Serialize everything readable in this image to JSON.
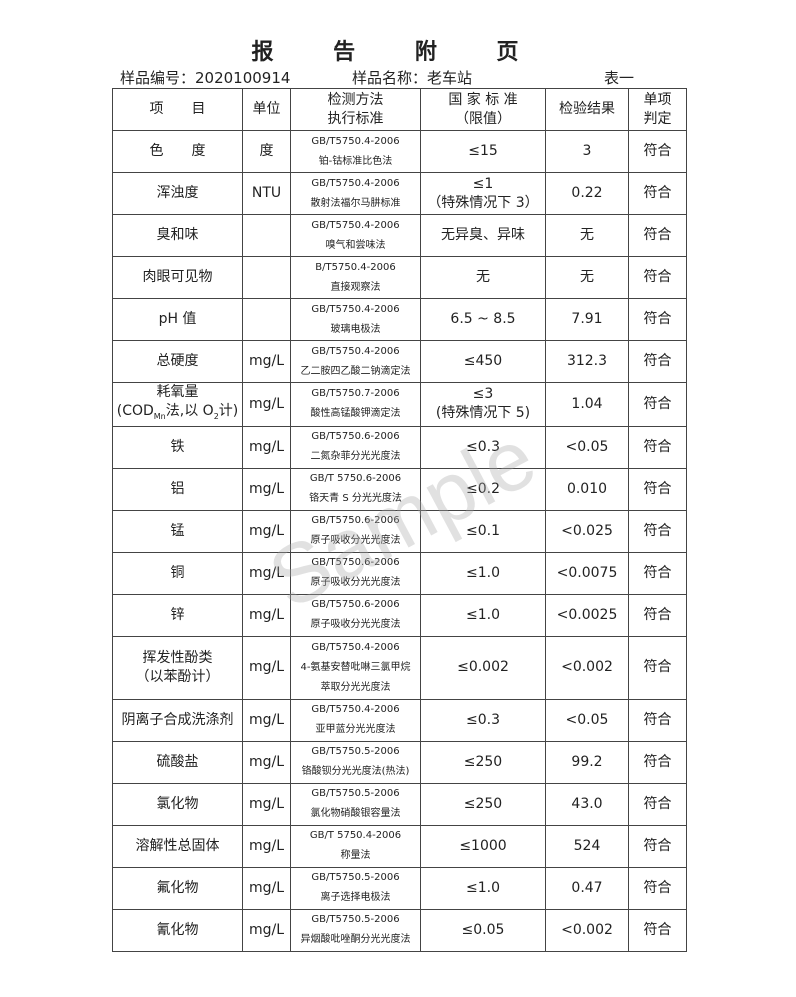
{
  "title": "报 告 附 页",
  "sample_no": "样品编号：2020100914",
  "sample_name": "样品名称：老车站",
  "table_label": "表一",
  "watermark": "Sample",
  "headers": {
    "item": "项　　目",
    "unit": "单位",
    "method1": "检测方法",
    "method2": "执行标准",
    "std1": "国 家 标 准",
    "std2": "（限值）",
    "result": "检验结果",
    "judge1": "单项",
    "judge2": "判定"
  },
  "rows": [
    {
      "item": "色　　度",
      "unit": "度",
      "code": "GB/T5750.4-2006",
      "method": "铂-钴标准比色法",
      "limit": "≤15",
      "result": "3",
      "judge": "符合"
    },
    {
      "item": "浑浊度",
      "unit": "NTU",
      "code": "GB/T5750.4-2006",
      "method": "散射法福尔马肼标准",
      "limit": "≤1",
      "limit2": "（特殊情况下 3）",
      "result": "0.22",
      "judge": "符合"
    },
    {
      "item": "臭和味",
      "unit": "",
      "code": "GB/T5750.4-2006",
      "method": "嗅气和尝味法",
      "limit": "无异臭、异味",
      "result": "无",
      "judge": "符合"
    },
    {
      "item": "肉眼可见物",
      "unit": "",
      "code": "B/T5750.4-2006",
      "method": "直接观察法",
      "limit": "无",
      "result": "无",
      "judge": "符合"
    },
    {
      "item": "pH 值",
      "unit": "",
      "code": "GB/T5750.4-2006",
      "method": "玻璃电极法",
      "limit": "6.5 ~ 8.5",
      "result": "7.91",
      "judge": "符合"
    },
    {
      "item": "总硬度",
      "unit": "mg/L",
      "code": "GB/T5750.4-2006",
      "method": "乙二胺四乙酸二钠滴定法",
      "limit": "≤450",
      "result": "312.3",
      "judge": "符合"
    },
    {
      "item": "耗氧量",
      "item2": "(COD<sub>Mn</sub>法,以 O<sub>2</sub>计)",
      "unit": "mg/L",
      "code": "GB/T5750.7-2006",
      "method": "酸性高锰酸钾滴定法",
      "limit": "≤3",
      "limit2": "(特殊情况下 5)",
      "result": "1.04",
      "judge": "符合"
    },
    {
      "item": "铁",
      "unit": "mg/L",
      "code": "GB/T5750.6-2006",
      "method": "二氮杂菲分光光度法",
      "limit": "≤0.3",
      "result": "<0.05",
      "judge": "符合"
    },
    {
      "item": "铝",
      "unit": "mg/L",
      "code": "GB/T 5750.6-2006",
      "method": "铬天青 S 分光光度法",
      "limit": "≤0.2",
      "result": "0.010",
      "judge": "符合"
    },
    {
      "item": "锰",
      "unit": "mg/L",
      "code": "GB/T5750.6-2006",
      "method": "原子吸收分光光度法",
      "limit": "≤0.1",
      "result": "<0.025",
      "judge": "符合"
    },
    {
      "item": "铜",
      "unit": "mg/L",
      "code": "GB/T5750.6-2006",
      "method": "原子吸收分光光度法",
      "limit": "≤1.0",
      "result": "<0.0075",
      "judge": "符合"
    },
    {
      "item": "锌",
      "unit": "mg/L",
      "code": "GB/T5750.6-2006",
      "method": "原子吸收分光光度法",
      "limit": "≤1.0",
      "result": "<0.0025",
      "judge": "符合"
    },
    {
      "item": "挥发性酚类",
      "item2": "（以苯酚计）",
      "unit": "mg/L",
      "code": "GB/T5750.4-2006",
      "method": "4-氨基安替吡啉三氯甲烷",
      "method2": "萃取分光光度法",
      "limit": "≤0.002",
      "result": "<0.002",
      "judge": "符合"
    },
    {
      "item": "阴离子合成洗涤剂",
      "unit": "mg/L",
      "code": "GB/T5750.4-2006",
      "method": "亚甲蓝分光光度法",
      "limit": "≤0.3",
      "result": "<0.05",
      "judge": "符合"
    },
    {
      "item": "硫酸盐",
      "unit": "mg/L",
      "code": "GB/T5750.5-2006",
      "method": "铬酸钡分光光度法(热法)",
      "limit": "≤250",
      "result": "99.2",
      "judge": "符合"
    },
    {
      "item": "氯化物",
      "unit": "mg/L",
      "code": "GB/T5750.5-2006",
      "method": "氯化物硝酸银容量法",
      "limit": "≤250",
      "result": "43.0",
      "judge": "符合"
    },
    {
      "item": "溶解性总固体",
      "unit": "mg/L",
      "code": "GB/T 5750.4-2006",
      "method": "称量法",
      "limit": "≤1000",
      "result": "524",
      "judge": "符合"
    },
    {
      "item": "氟化物",
      "unit": "mg/L",
      "code": "GB/T5750.5-2006",
      "method": "离子选择电极法",
      "limit": "≤1.0",
      "result": "0.47",
      "judge": "符合"
    },
    {
      "item": "氰化物",
      "unit": "mg/L",
      "code": "GB/T5750.5-2006",
      "method": "异烟酸吡唑酮分光光度法",
      "limit": "≤0.05",
      "result": "<0.002",
      "judge": "符合"
    }
  ]
}
